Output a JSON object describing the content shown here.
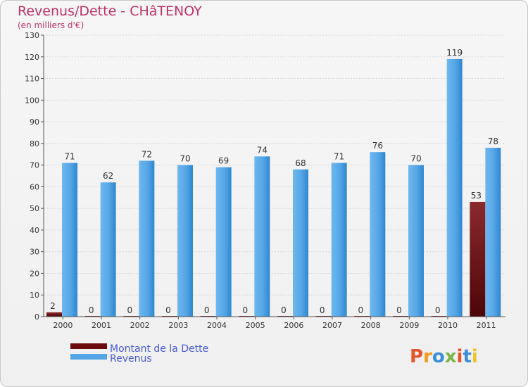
{
  "chart_data": {
    "type": "bar",
    "title": "Revenus/Dette - CHâTENOY",
    "subtitle": "(en milliers d'€)",
    "categories": [
      "2000",
      "2001",
      "2002",
      "2003",
      "2004",
      "2005",
      "2006",
      "2007",
      "2008",
      "2009",
      "2010",
      "2011"
    ],
    "series": [
      {
        "name": "Montant de la Dette",
        "values": [
          2,
          0,
          0,
          0,
          0,
          0,
          0,
          0,
          0,
          0,
          0,
          53
        ],
        "color": "#7a1f22"
      },
      {
        "name": "Revenus",
        "values": [
          71,
          62,
          72,
          70,
          69,
          74,
          68,
          71,
          76,
          70,
          119,
          78
        ],
        "color": "#55a6e6"
      }
    ],
    "ylim": [
      0,
      130
    ],
    "yticks": [
      0,
      10,
      20,
      30,
      40,
      50,
      60,
      70,
      80,
      90,
      100,
      110,
      120,
      130
    ],
    "grid": true,
    "legend_position": "bottom-left"
  },
  "colors": {
    "title": "#c0306b",
    "legend_text": "#4a5bd6",
    "axis_text": "#333333",
    "grid": "#d6d6d6"
  },
  "logo": {
    "text": "Proxiti"
  }
}
